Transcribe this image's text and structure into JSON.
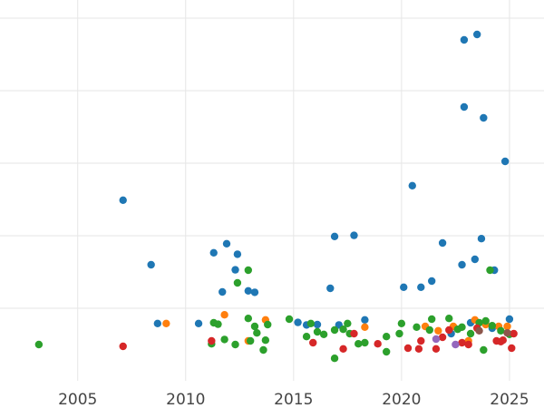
{
  "chart_data": {
    "type": "scatter",
    "title": "",
    "xlabel": "",
    "ylabel": "",
    "xlim": [
      2001.4,
      2026.6
    ],
    "ylim": [
      -1.0,
      9.5
    ],
    "grid": true,
    "legend": "none",
    "x_ticks": [
      "2005",
      "2010",
      "2015",
      "2020",
      "2025"
    ],
    "y_gridlines": [
      1,
      3,
      5,
      7,
      9
    ],
    "series": [
      {
        "color": "#1f77b4",
        "points": [
          [
            2007.1,
            3.98
          ],
          [
            2008.4,
            2.2
          ],
          [
            2008.7,
            0.58
          ],
          [
            2010.6,
            0.58
          ],
          [
            2011.3,
            2.53
          ],
          [
            2011.7,
            1.45
          ],
          [
            2011.9,
            2.78
          ],
          [
            2012.3,
            2.06
          ],
          [
            2012.4,
            2.49
          ],
          [
            2012.9,
            1.48
          ],
          [
            2013.2,
            1.44
          ],
          [
            2015.2,
            0.61
          ],
          [
            2015.6,
            0.54
          ],
          [
            2016.1,
            0.55
          ],
          [
            2016.7,
            1.55
          ],
          [
            2016.9,
            2.98
          ],
          [
            2017.1,
            0.54
          ],
          [
            2017.8,
            3.01
          ],
          [
            2018.3,
            0.68
          ],
          [
            2020.1,
            1.58
          ],
          [
            2020.5,
            4.38
          ],
          [
            2020.9,
            1.58
          ],
          [
            2021.4,
            1.75
          ],
          [
            2021.9,
            2.8
          ],
          [
            2022.3,
            0.3
          ],
          [
            2022.8,
            2.2
          ],
          [
            2022.9,
            6.55
          ],
          [
            2022.9,
            8.4
          ],
          [
            2023.2,
            0.6
          ],
          [
            2023.4,
            2.35
          ],
          [
            2023.5,
            8.55
          ],
          [
            2023.7,
            2.92
          ],
          [
            2023.8,
            6.25
          ],
          [
            2024.2,
            0.45
          ],
          [
            2024.3,
            2.05
          ],
          [
            2024.8,
            5.05
          ],
          [
            2025.0,
            0.7
          ]
        ]
      },
      {
        "color": "#ff7f0e",
        "points": [
          [
            2009.1,
            0.58
          ],
          [
            2011.8,
            0.82
          ],
          [
            2012.9,
            0.1
          ],
          [
            2013.7,
            0.68
          ],
          [
            2018.3,
            0.48
          ],
          [
            2021.1,
            0.5
          ],
          [
            2021.7,
            0.38
          ],
          [
            2022.4,
            0.5
          ],
          [
            2023.1,
            0.1
          ],
          [
            2023.4,
            0.68
          ],
          [
            2023.9,
            0.55
          ],
          [
            2024.5,
            0.5
          ],
          [
            2024.9,
            0.5
          ]
        ]
      },
      {
        "color": "#2ca02c",
        "points": [
          [
            2003.2,
            0.0
          ],
          [
            2011.2,
            0.02
          ],
          [
            2011.3,
            0.6
          ],
          [
            2011.5,
            0.56
          ],
          [
            2011.8,
            0.14
          ],
          [
            2012.3,
            0.0
          ],
          [
            2012.4,
            1.7
          ],
          [
            2012.9,
            2.05
          ],
          [
            2012.9,
            0.72
          ],
          [
            2013.0,
            0.1
          ],
          [
            2013.2,
            0.5
          ],
          [
            2013.3,
            0.32
          ],
          [
            2013.6,
            -0.15
          ],
          [
            2013.7,
            0.12
          ],
          [
            2013.8,
            0.55
          ],
          [
            2014.8,
            0.7
          ],
          [
            2015.6,
            0.22
          ],
          [
            2015.8,
            0.58
          ],
          [
            2016.1,
            0.35
          ],
          [
            2016.4,
            0.28
          ],
          [
            2016.9,
            0.4
          ],
          [
            2016.9,
            -0.38
          ],
          [
            2017.3,
            0.42
          ],
          [
            2017.5,
            0.58
          ],
          [
            2017.6,
            0.3
          ],
          [
            2018.0,
            0.02
          ],
          [
            2018.3,
            0.05
          ],
          [
            2019.3,
            0.22
          ],
          [
            2019.3,
            -0.2
          ],
          [
            2019.9,
            0.3
          ],
          [
            2020.0,
            0.58
          ],
          [
            2020.7,
            0.48
          ],
          [
            2021.3,
            0.4
          ],
          [
            2021.4,
            0.7
          ],
          [
            2022.2,
            0.72
          ],
          [
            2022.6,
            0.42
          ],
          [
            2022.8,
            0.48
          ],
          [
            2023.2,
            0.3
          ],
          [
            2023.6,
            0.6
          ],
          [
            2023.9,
            0.65
          ],
          [
            2023.8,
            -0.15
          ],
          [
            2024.2,
            0.52
          ],
          [
            2024.1,
            2.05
          ],
          [
            2024.6,
            0.38
          ],
          [
            2025.0,
            0.28
          ]
        ]
      },
      {
        "color": "#d62728",
        "points": [
          [
            2007.1,
            -0.05
          ],
          [
            2011.2,
            0.1
          ],
          [
            2015.9,
            0.05
          ],
          [
            2017.3,
            -0.12
          ],
          [
            2017.8,
            0.3
          ],
          [
            2018.9,
            0.02
          ],
          [
            2020.3,
            -0.1
          ],
          [
            2020.8,
            -0.12
          ],
          [
            2020.9,
            0.1
          ],
          [
            2021.6,
            -0.12
          ],
          [
            2021.9,
            0.2
          ],
          [
            2022.2,
            0.4
          ],
          [
            2022.8,
            0.05
          ],
          [
            2023.1,
            0.0
          ],
          [
            2023.5,
            0.45
          ],
          [
            2024.4,
            0.1
          ],
          [
            2024.6,
            0.08
          ],
          [
            2024.7,
            0.12
          ],
          [
            2025.1,
            -0.1
          ],
          [
            2025.2,
            0.3
          ]
        ]
      },
      {
        "color": "#9467bd",
        "points": [
          [
            2021.6,
            0.15
          ],
          [
            2022.5,
            0.0
          ]
        ]
      },
      {
        "color": "#8c564b",
        "points": [
          [
            2023.6,
            0.38
          ],
          [
            2024.9,
            0.32
          ]
        ]
      }
    ]
  }
}
